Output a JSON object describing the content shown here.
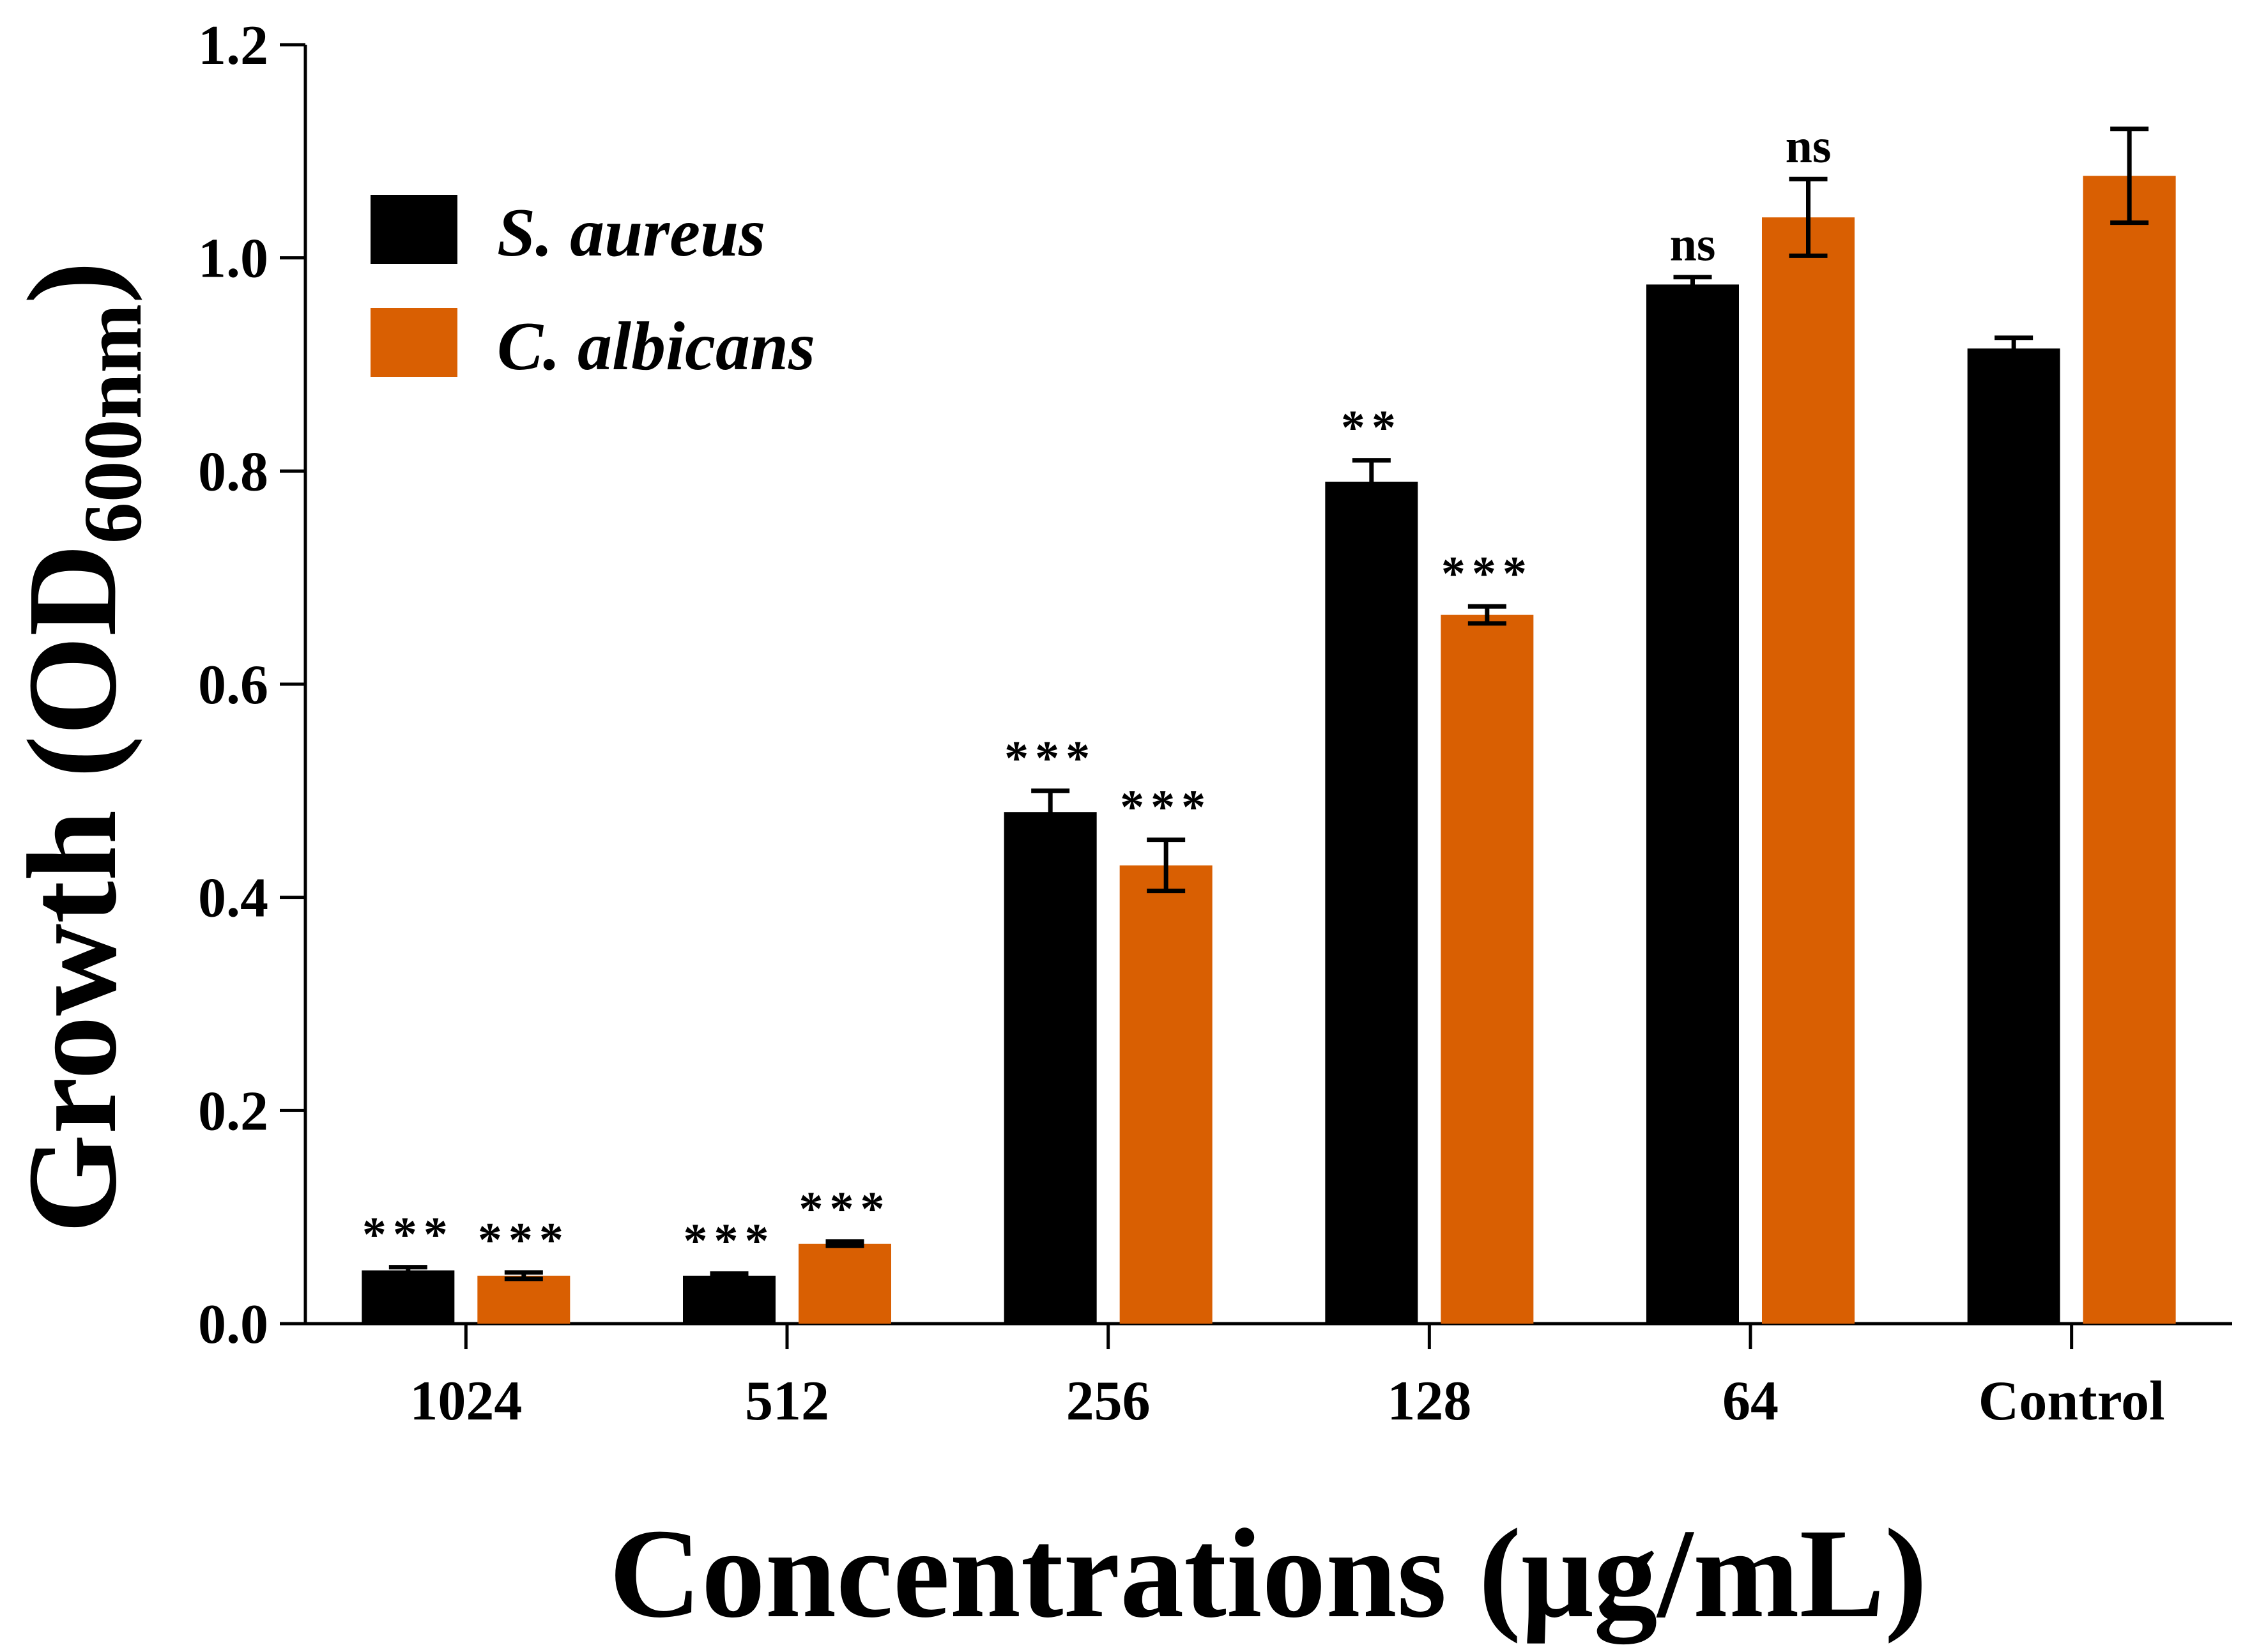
{
  "chart_data": {
    "type": "bar",
    "title": "",
    "xlabel": "Concentrations (μg/mL)",
    "ylabel": {
      "main": "Growth (OD",
      "subscript": "600nm",
      "close": ")"
    },
    "categories": [
      "1024",
      "512",
      "256",
      "128",
      "64",
      "Control"
    ],
    "ylim": [
      0,
      1.2
    ],
    "yticks": [
      "0.0",
      "0.2",
      "0.4",
      "0.6",
      "0.8",
      "1.0",
      "1.2"
    ],
    "legend_position": "top-left",
    "series": [
      {
        "name": "S. aureus",
        "color": "#000000",
        "values": [
          0.05,
          0.045,
          0.48,
          0.79,
          0.975,
          0.915
        ],
        "errors": [
          0.003,
          0.002,
          0.02,
          0.02,
          0.007,
          0.01
        ],
        "significance": [
          "***",
          "***",
          "***",
          "**",
          "ns",
          ""
        ]
      },
      {
        "name": "C. albicans",
        "color": "#D95F02",
        "values": [
          0.045,
          0.075,
          0.43,
          0.665,
          1.038,
          1.077
        ],
        "errors": [
          0.003,
          0.002,
          0.024,
          0.008,
          0.036,
          0.044
        ],
        "significance": [
          "***",
          "***",
          "***",
          "***",
          "ns",
          ""
        ]
      }
    ]
  }
}
